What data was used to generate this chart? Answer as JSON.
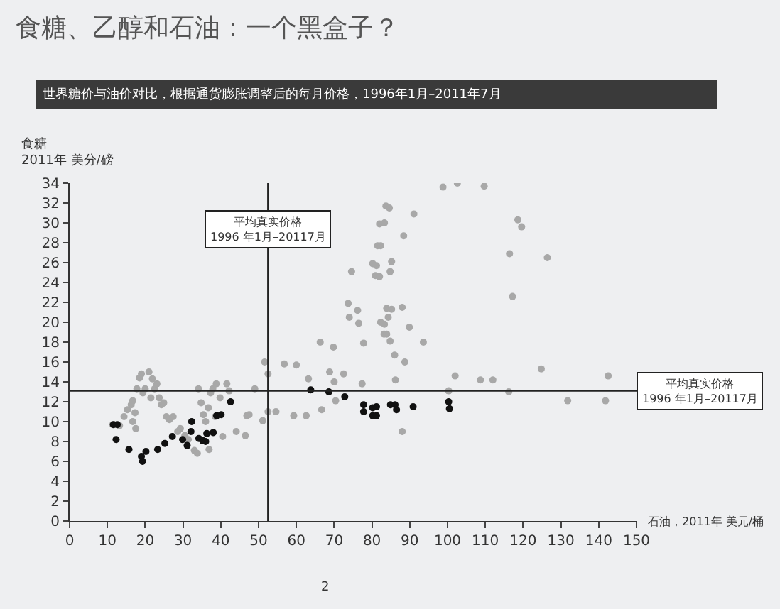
{
  "chart_data": {
    "type": "scatter",
    "title": "食糖、乙醇和石油：一个黑盒子？",
    "subtitle": "世界糖价与油价对比，根据通货膨胀调整后的每月价格，1996年1月–2011年7月",
    "xlabel": "石油，2011年 美元/桶",
    "ylabel": "食糖\n2011年 美分/磅",
    "annotations": [
      "2"
    ],
    "xlim": [
      0,
      150
    ],
    "xticks": [
      0,
      10,
      20,
      30,
      40,
      50,
      60,
      70,
      80,
      90,
      100,
      110,
      120,
      130,
      140,
      150
    ],
    "ylim": [
      0,
      34
    ],
    "yticks": [
      0,
      2,
      4,
      6,
      8,
      10,
      12,
      14,
      16,
      18,
      20,
      22,
      24,
      26,
      28,
      30,
      32,
      34
    ],
    "grid": false,
    "marker": "circle",
    "ref_lines": [
      {
        "axis": "x",
        "value": 52.5,
        "label": "平均真实价格\n1996 年1月–20117月",
        "color": "#222222"
      },
      {
        "axis": "y",
        "value": 13.1,
        "label": "平均真实价格\n1996 年1月–20117月",
        "color": "#222222"
      }
    ],
    "series": [
      {
        "color": "#a8a8a8",
        "x": [
          11.4,
          13.2,
          14.4,
          15.3,
          16.3,
          16.7,
          17.3,
          16.7,
          17.5,
          17.8,
          18.5,
          19.0,
          19.4,
          20,
          21,
          21.5,
          21.9,
          22.5,
          23.1,
          23.7,
          24.3,
          24.9,
          25.6,
          26.4,
          27.4,
          28.6,
          29.3,
          30.5,
          31.4,
          33,
          33.8,
          34.1,
          34.8,
          35.4,
          36,
          36.7,
          36.9,
          37.3,
          37.9,
          38.5,
          38.8,
          39.8,
          40.5,
          41.6,
          42.2,
          44.1,
          46.5,
          46.9,
          47.5,
          49,
          51.1,
          51.6,
          52.5,
          52.5,
          54.6,
          56.8,
          59.3,
          60,
          62.6,
          63.2,
          66.3,
          66.7,
          68.8,
          69.8,
          70,
          70.4,
          72.5,
          73.7,
          74,
          74.6,
          76.2,
          76.5,
          77.8,
          77.4,
          80.2,
          80.9,
          81.5,
          82,
          82.3,
          83.2,
          83.7,
          83.9,
          84.6,
          83.3,
          91.1,
          98.8,
          102.6,
          109.7,
          88.4,
          82.3,
          81.2,
          85.2,
          84.8,
          82,
          118.6,
          119.6,
          116.4,
          126.4,
          117.2,
          85.2,
          88,
          84.3,
          83.3,
          89.9,
          83.9,
          84.8,
          93.6,
          86,
          88.7,
          86.2,
          102,
          108.7,
          112,
          124.8,
          142.5,
          100.3,
          116.2,
          131.8,
          141.8,
          88
        ],
        "values": [
          9.7,
          9.6,
          10.5,
          11.2,
          11.7,
          12.1,
          10.9,
          10.0,
          9.3,
          13.3,
          14.4,
          14.8,
          12.9,
          13.3,
          15.0,
          12.4,
          14.3,
          13.3,
          13.8,
          12.4,
          11.7,
          11.9,
          10.5,
          10.2,
          10.5,
          9.0,
          9.3,
          8.6,
          8.2,
          7.1,
          6.8,
          13.3,
          11.9,
          10.7,
          10,
          11.4,
          7.2,
          12.9,
          13.3,
          10.5,
          13.8,
          12.4,
          8.5,
          13.8,
          13.1,
          9.0,
          8.6,
          10.6,
          10.7,
          13.3,
          10.1,
          16,
          11,
          14.8,
          11,
          15.8,
          10.6,
          15.7,
          10.6,
          14.3,
          18,
          11.2,
          15,
          17.5,
          14,
          12.1,
          14.8,
          21.9,
          20.5,
          25.1,
          21.2,
          19.9,
          17.9,
          13.8,
          25.9,
          24.7,
          27.7,
          29.9,
          20,
          18.8,
          31.7,
          21.4,
          31.5,
          30,
          30.9,
          33.6,
          34,
          33.7,
          28.7,
          27.7,
          25.7,
          26.1,
          25.1,
          24.6,
          30.3,
          29.6,
          26.9,
          26.5,
          22.6,
          21.3,
          21.5,
          20.5,
          19.8,
          19.5,
          18.8,
          18.1,
          18,
          16.7,
          16,
          14.2,
          14.6,
          14.2,
          14.2,
          15.3,
          14.6,
          13.1,
          13,
          12.1,
          12.1,
          9
        ]
      },
      {
        "color": "#111111",
        "x": [
          12.6,
          11.6,
          12.3,
          15.7,
          19,
          19.3,
          20.2,
          23.3,
          25.2,
          27.2,
          29.9,
          31.1,
          32.1,
          32.3,
          34.2,
          34.6,
          35.2,
          36,
          36.3,
          38,
          38.9,
          40.1,
          42.6,
          63.8,
          68.6,
          72.8,
          77.8,
          77.8,
          80.2,
          80.2,
          84.9,
          81.2,
          81.2,
          86.1,
          86.5,
          90.9,
          100.3,
          100.5
        ],
        "values": [
          9.7,
          9.7,
          8.2,
          7.2,
          6.5,
          6.0,
          7.0,
          7.2,
          7.8,
          8.5,
          8.2,
          7.6,
          9.0,
          10,
          8.3,
          null,
          8.1,
          8.0,
          8.8,
          8.9,
          10.6,
          10.7,
          12,
          13.2,
          13,
          12.5,
          11.7,
          11,
          11.4,
          10.6,
          11.7,
          11.5,
          10.6,
          11.7,
          11.2,
          11.5,
          12,
          11.3
        ]
      }
    ]
  }
}
